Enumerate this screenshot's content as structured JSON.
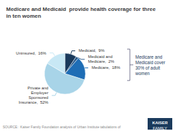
{
  "chart_data": {
    "type": "pie",
    "title": "Medicare and Medicaid  provide health coverage for three\nin ten women",
    "categories": [
      "Medicaid,  9%",
      "Medicaid and\nMedicare,  2%",
      "Medicare,  18%",
      "Private and\nEmployer\nSponsored\nInsurance,  52%",
      "Uninsured,  16%"
    ],
    "values": [
      9,
      2,
      18,
      52,
      16
    ],
    "colors": [
      "#1a3a5c",
      "#2a5a8a",
      "#1e6db5",
      "#a8d4e8",
      "#c8e8f5"
    ],
    "annotation": "Medicare and\nMedicaid cover\n30% of adult\nwomen",
    "source": "SOURCE:  Kaiser Family Foundation analysis of Urban Institute tabulations of",
    "logo": [
      "KAISER",
      "FAMILY"
    ]
  }
}
